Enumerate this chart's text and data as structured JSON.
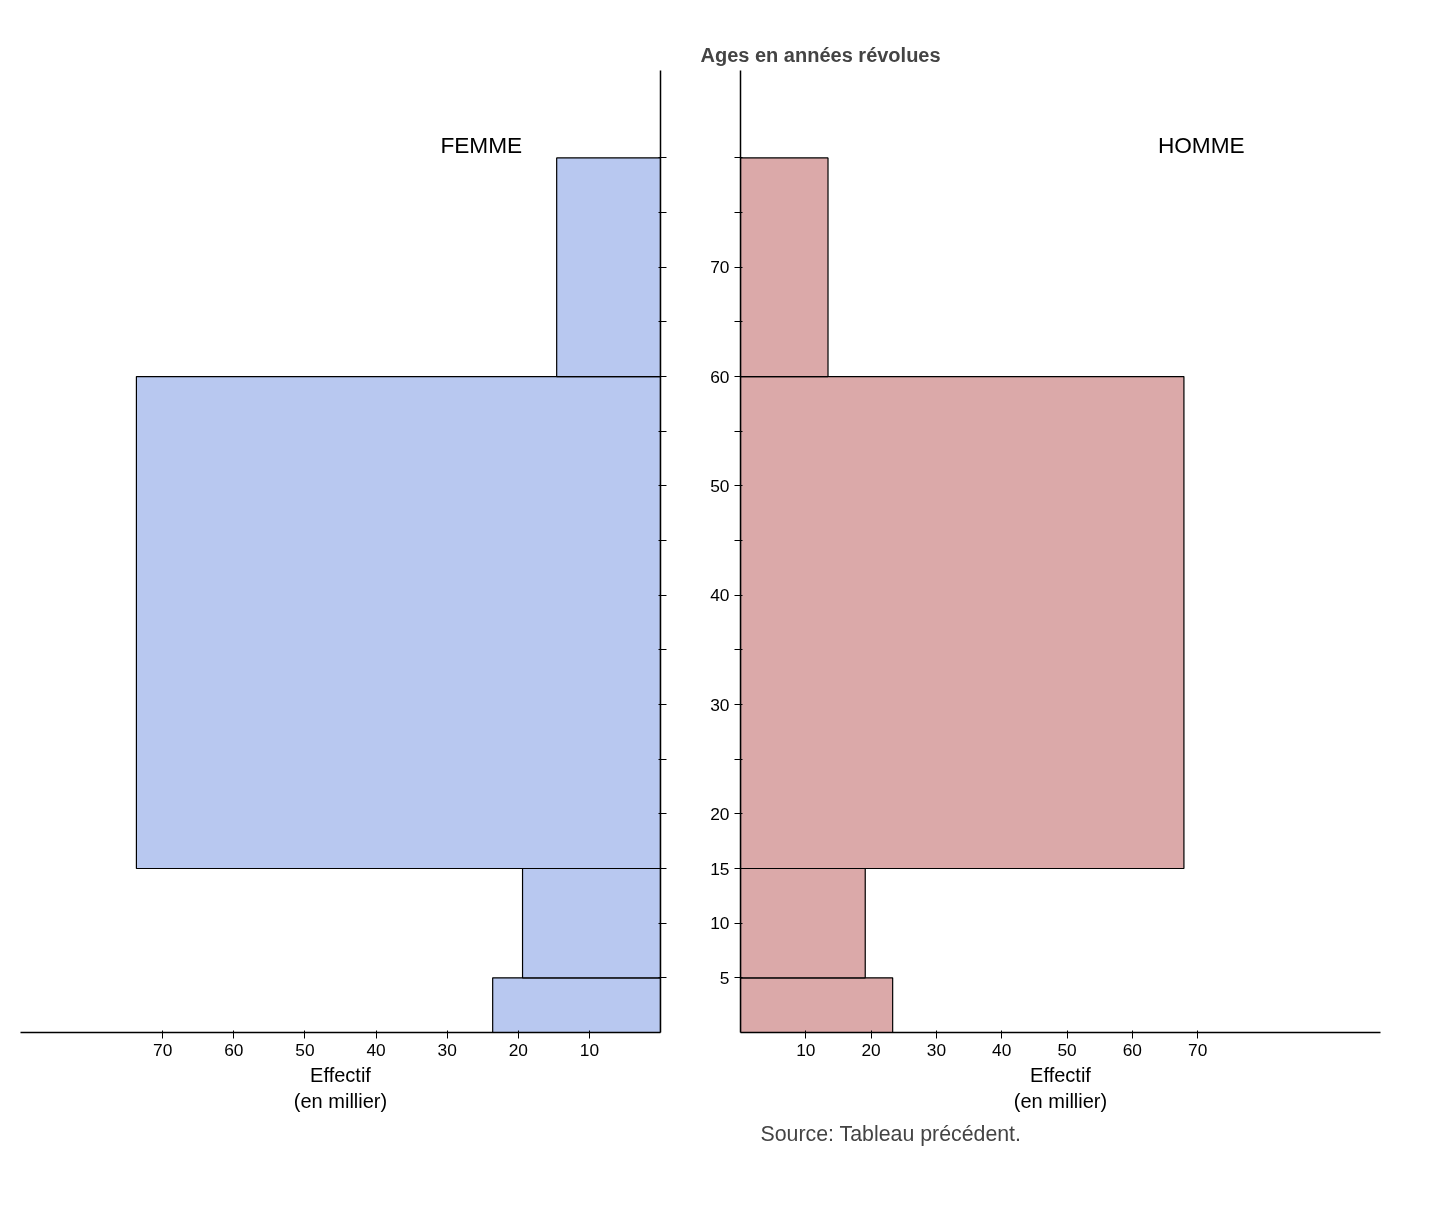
{
  "chart_data": [
    {
      "type": "histogram",
      "orientation": "horizontal",
      "bins": [
        0,
        5,
        15,
        60,
        80
      ],
      "series": [
        {
          "name": "FEMME",
          "color": "#b8c8f0",
          "values": [
            23.6,
            19.4,
            73.7,
            14.6
          ]
        }
      ],
      "xlim": [
        90,
        0
      ],
      "xticks": [
        70,
        60,
        50,
        40,
        30,
        20,
        10
      ],
      "ylim": [
        0,
        88
      ],
      "yticks": [
        5,
        10,
        15,
        20,
        {
          "value": 25,
          "label": null
        },
        30,
        {
          "value": 35,
          "label": null
        },
        40,
        {
          "value": 45,
          "label": null
        },
        50,
        {
          "value": 55,
          "label": null
        },
        60,
        {
          "value": 65,
          "label": null
        },
        70,
        {
          "value": 75,
          "label": null
        },
        {
          "value": 80,
          "label": null
        }
      ],
      "tick_labels": "x",
      "xlabel": "Effectif\n(en millier)",
      "grid": false
    },
    {
      "type": "histogram",
      "orientation": "horizontal",
      "bins": [
        0,
        5,
        15,
        60,
        80
      ],
      "series": [
        {
          "name": "HOMME",
          "color": "#dba9a9",
          "values": [
            23.3,
            19.1,
            67.9,
            13.4
          ]
        }
      ],
      "xlim": [
        0,
        98
      ],
      "xticks": [
        10,
        20,
        30,
        40,
        50,
        60,
        70
      ],
      "ylim": [
        0,
        88
      ],
      "yticks": [
        5,
        10,
        15,
        20,
        {
          "value": 25,
          "label": null
        },
        30,
        {
          "value": 35,
          "label": null
        },
        40,
        {
          "value": 45,
          "label": null
        },
        50,
        {
          "value": 55,
          "label": null
        },
        60,
        {
          "value": 65,
          "label": null
        },
        70,
        {
          "value": 75,
          "label": null
        },
        {
          "value": 80,
          "label": null
        }
      ],
      "ylabel": "Ages en années révolues",
      "xlabel": "Effectif\n(en millier)",
      "grid": false,
      "annotations": [
        "Source: Tableau précédent."
      ]
    }
  ]
}
